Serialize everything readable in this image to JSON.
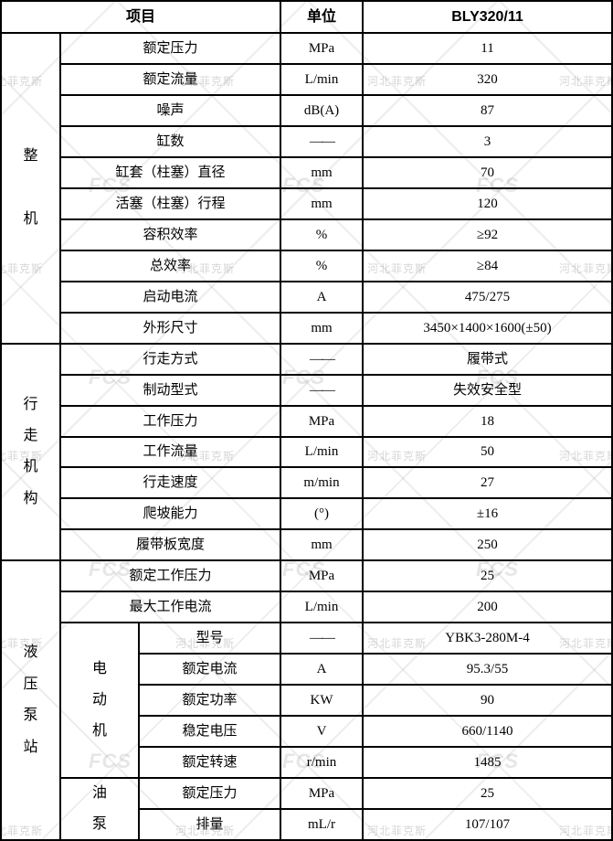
{
  "header": {
    "item_label": "项目",
    "unit_label": "单位",
    "model": "BLY320/11"
  },
  "groups": {
    "whole_machine": "整机",
    "travel_mechanism": "行走机构",
    "hydraulic_pump_station": "液压泵站"
  },
  "subgroups": {
    "electric_motor": "电动机",
    "oil_pump": "油泵"
  },
  "rows": [
    {
      "item": "额定压力",
      "unit": "MPa",
      "value": "11"
    },
    {
      "item": "额定流量",
      "unit": "L/min",
      "value": "320"
    },
    {
      "item": "噪声",
      "unit": "dB(A)",
      "value": "87"
    },
    {
      "item": "缸数",
      "unit": "——",
      "value": "3"
    },
    {
      "item": "缸套（柱塞）直径",
      "unit": "mm",
      "value": "70"
    },
    {
      "item": "活塞（柱塞）行程",
      "unit": "mm",
      "value": "120"
    },
    {
      "item": "容积效率",
      "unit": "%",
      "value": "≥92"
    },
    {
      "item": "总效率",
      "unit": "%",
      "value": "≥84"
    },
    {
      "item": "启动电流",
      "unit": "A",
      "value": "475/275"
    },
    {
      "item": "外形尺寸",
      "unit": "mm",
      "value": "3450×1400×1600(±50)"
    },
    {
      "item": "行走方式",
      "unit": "——",
      "value": "履带式"
    },
    {
      "item": "制动型式",
      "unit": "——",
      "value": "失效安全型"
    },
    {
      "item": "工作压力",
      "unit": "MPa",
      "value": "18"
    },
    {
      "item": "工作流量",
      "unit": "L/min",
      "value": "50"
    },
    {
      "item": "行走速度",
      "unit": "m/min",
      "value": "27"
    },
    {
      "item": "爬坡能力",
      "unit": "(°)",
      "value": "±16"
    },
    {
      "item": "履带板宽度",
      "unit": "mm",
      "value": "250"
    },
    {
      "item": "额定工作压力",
      "unit": "MPa",
      "value": "25"
    },
    {
      "item": "最大工作电流",
      "unit": "L/min",
      "value": "200"
    },
    {
      "item": "型号",
      "unit": "——",
      "value": "YBK3-280M-4",
      "sub": true
    },
    {
      "item": "额定电流",
      "unit": "A",
      "value": "95.3/55",
      "sub": true
    },
    {
      "item": "额定功率",
      "unit": "KW",
      "value": "90",
      "sub": true
    },
    {
      "item": "稳定电压",
      "unit": "V",
      "value": "660/1140",
      "sub": true
    },
    {
      "item": "额定转速",
      "unit": "r/min",
      "value": "1485",
      "sub": true
    },
    {
      "item": "额定压力",
      "unit": "MPa",
      "value": "25",
      "sub": true
    },
    {
      "item": "排量",
      "unit": "mL/r",
      "value": "107/107",
      "sub": true
    }
  ],
  "watermark": {
    "text": "河北菲克斯",
    "logo": "FCS"
  }
}
